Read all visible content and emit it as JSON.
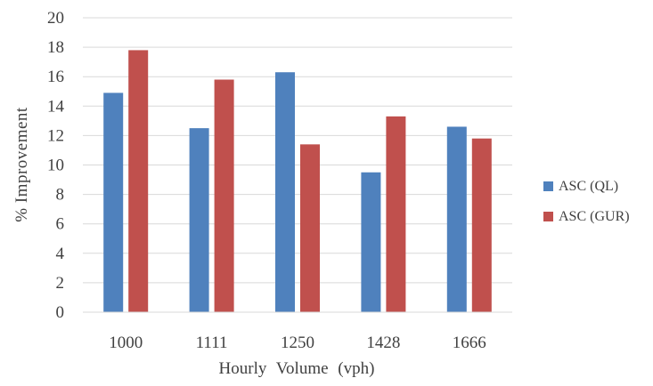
{
  "chart_data": {
    "type": "bar",
    "title": "",
    "xlabel": "Hourly Volume (vph)",
    "ylabel": "% Improvement",
    "categories": [
      "1000",
      "1111",
      "1250",
      "1428",
      "1666"
    ],
    "series": [
      {
        "name": "ASC (QL)",
        "values": [
          14.9,
          12.5,
          16.3,
          9.5,
          12.6
        ],
        "color": "#4f81bd"
      },
      {
        "name": "ASC (GUR)",
        "values": [
          17.8,
          15.8,
          11.4,
          13.3,
          11.8
        ],
        "color": "#c0504d"
      }
    ],
    "ylim": [
      0,
      20
    ],
    "yticks": [
      0,
      2,
      4,
      6,
      8,
      10,
      12,
      14,
      16,
      18,
      20
    ],
    "grid": true,
    "legend_position": "right"
  }
}
